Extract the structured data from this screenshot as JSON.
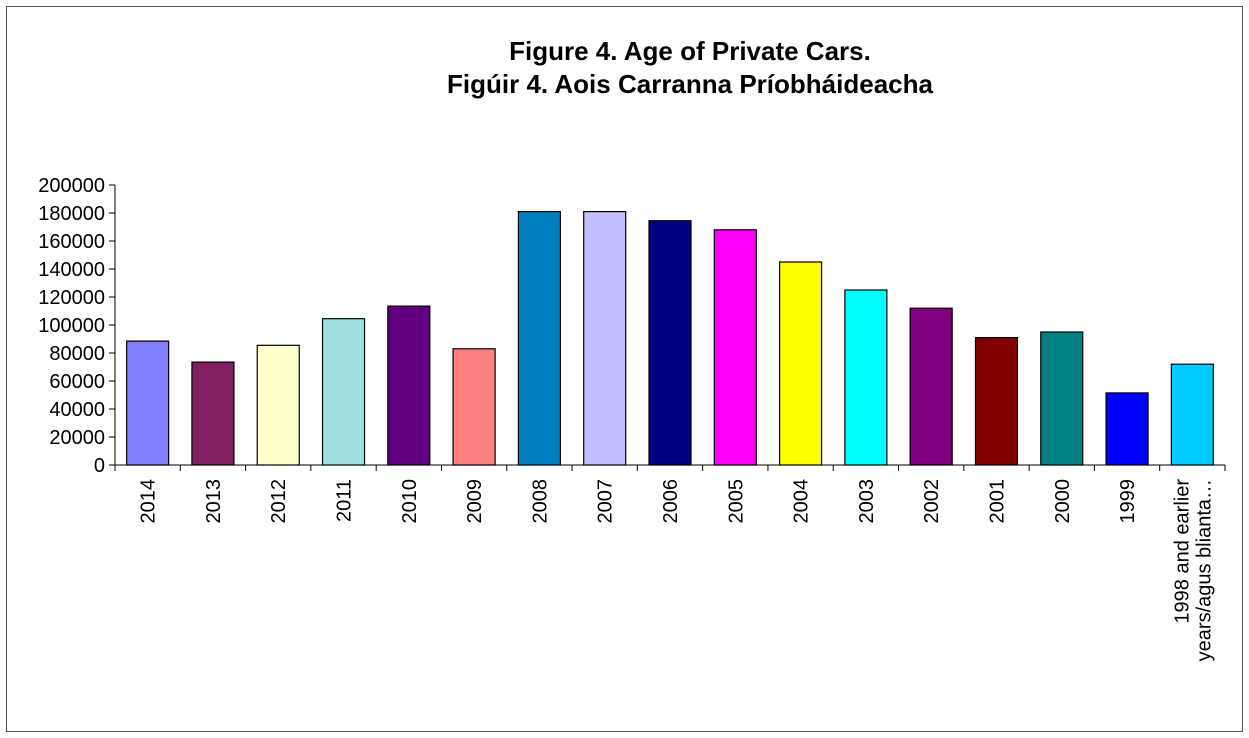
{
  "chart_data": {
    "type": "bar",
    "title": "Figure 4. Age of Private Cars.",
    "subtitle": "Figúir 4. Aois Carranna Príobháideacha",
    "xlabel": "",
    "ylabel": "",
    "ylim": [
      0,
      200000
    ],
    "yticks": [
      0,
      20000,
      40000,
      60000,
      80000,
      100000,
      120000,
      140000,
      160000,
      180000,
      200000
    ],
    "grid": false,
    "legend": "none",
    "categories": [
      [
        "2014"
      ],
      [
        "2013"
      ],
      [
        "2012"
      ],
      [
        "2011"
      ],
      [
        "2010"
      ],
      [
        "2009"
      ],
      [
        "2008"
      ],
      [
        "2007"
      ],
      [
        "2006"
      ],
      [
        "2005"
      ],
      [
        "2004"
      ],
      [
        "2003"
      ],
      [
        "2002"
      ],
      [
        "2001"
      ],
      [
        "2000"
      ],
      [
        "1999"
      ],
      [
        "1998 and earlier",
        "years/agus blianta…"
      ]
    ],
    "values": [
      88500,
      73500,
      85500,
      104500,
      113500,
      83000,
      181000,
      181000,
      174500,
      168000,
      145000,
      125000,
      112000,
      91000,
      95000,
      51500,
      72000
    ],
    "colors": [
      "#8080ff",
      "#802060",
      "#ffffcc",
      "#a0e0e0",
      "#600080",
      "#ff8080",
      "#0080c0",
      "#c0c0ff",
      "#000080",
      "#ff00ff",
      "#ffff00",
      "#00ffff",
      "#800080",
      "#800000",
      "#008080",
      "#0000ff",
      "#00ccff"
    ]
  }
}
